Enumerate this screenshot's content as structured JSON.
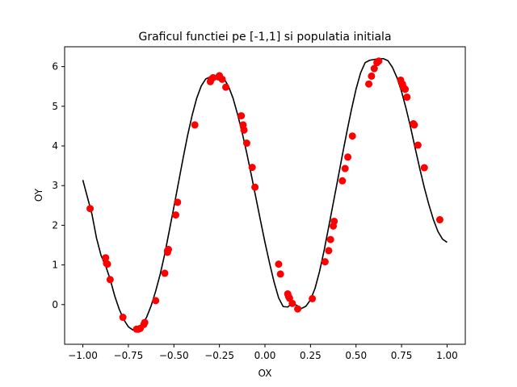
{
  "chart_data": {
    "type": "line+scatter",
    "title": "Graficul functiei pe [-1,1] si populatia initiala",
    "xlabel": "OX",
    "ylabel": "OY",
    "xlim": [
      -1.1,
      1.1
    ],
    "ylim": [
      -1.0,
      6.5
    ],
    "xticks": [
      -1.0,
      -0.75,
      -0.5,
      -0.25,
      0.0,
      0.25,
      0.5,
      0.75,
      1.0
    ],
    "xtick_labels": [
      "−1.00",
      "−0.75",
      "−0.50",
      "−0.25",
      "0.00",
      "0.25",
      "0.50",
      "0.75",
      "1.00"
    ],
    "yticks": [
      0,
      1,
      2,
      3,
      4,
      5,
      6
    ],
    "ytick_labels": [
      "0",
      "1",
      "2",
      "3",
      "4",
      "5",
      "6"
    ],
    "grid": false,
    "series": [
      {
        "type": "line",
        "color": "#000000",
        "x": [
          -1.0,
          -0.975,
          -0.95,
          -0.925,
          -0.9,
          -0.875,
          -0.85,
          -0.825,
          -0.8,
          -0.775,
          -0.75,
          -0.725,
          -0.7,
          -0.675,
          -0.65,
          -0.625,
          -0.6,
          -0.575,
          -0.55,
          -0.525,
          -0.5,
          -0.475,
          -0.45,
          -0.425,
          -0.4,
          -0.375,
          -0.35,
          -0.325,
          -0.3,
          -0.275,
          -0.25,
          -0.225,
          -0.2,
          -0.175,
          -0.15,
          -0.125,
          -0.1,
          -0.075,
          -0.05,
          -0.025,
          0.0,
          0.025,
          0.05,
          0.075,
          0.1,
          0.125,
          0.15,
          0.175,
          0.2,
          0.225,
          0.25,
          0.275,
          0.3,
          0.325,
          0.35,
          0.375,
          0.4,
          0.425,
          0.45,
          0.475,
          0.5,
          0.525,
          0.55,
          0.575,
          0.6,
          0.625,
          0.65,
          0.675,
          0.7,
          0.725,
          0.75,
          0.775,
          0.8,
          0.825,
          0.85,
          0.875,
          0.9,
          0.925,
          0.95,
          0.975,
          1.0
        ],
        "y": [
          3.14,
          2.71,
          2.28,
          1.68,
          1.24,
          0.98,
          0.64,
          0.22,
          -0.12,
          -0.38,
          -0.56,
          -0.64,
          -0.62,
          -0.51,
          -0.32,
          -0.03,
          0.34,
          0.77,
          1.28,
          1.87,
          2.46,
          3.07,
          3.68,
          4.26,
          4.77,
          5.2,
          5.51,
          5.69,
          5.74,
          5.76,
          5.76,
          5.7,
          5.5,
          5.2,
          4.79,
          4.33,
          3.82,
          3.27,
          2.7,
          2.13,
          1.57,
          1.05,
          0.57,
          0.17,
          -0.05,
          -0.06,
          0.03,
          -0.02,
          -0.1,
          -0.04,
          0.12,
          0.41,
          0.84,
          1.37,
          1.96,
          2.56,
          3.16,
          3.77,
          4.36,
          4.92,
          5.43,
          5.84,
          6.1,
          6.16,
          6.18,
          6.2,
          6.2,
          6.15,
          5.98,
          5.72,
          5.37,
          4.94,
          4.46,
          3.94,
          3.43,
          2.95,
          2.52,
          2.14,
          1.84,
          1.65,
          1.57
        ]
      },
      {
        "type": "scatter",
        "color": "#ff0000",
        "x": [
          -0.96,
          -0.875,
          -0.87,
          -0.865,
          -0.85,
          -0.78,
          -0.705,
          -0.695,
          -0.685,
          -0.665,
          -0.66,
          -0.6,
          -0.55,
          -0.535,
          -0.535,
          -0.53,
          -0.49,
          -0.48,
          -0.385,
          -0.3,
          -0.295,
          -0.285,
          -0.255,
          -0.25,
          -0.235,
          -0.215,
          -0.13,
          -0.12,
          -0.115,
          -0.1,
          -0.07,
          -0.055,
          0.075,
          0.085,
          0.125,
          0.13,
          0.135,
          0.15,
          0.18,
          0.26,
          0.33,
          0.35,
          0.36,
          0.375,
          0.38,
          0.425,
          0.44,
          0.455,
          0.48,
          0.57,
          0.585,
          0.6,
          0.615,
          0.625,
          0.745,
          0.755,
          0.76,
          0.77,
          0.78,
          0.815,
          0.82,
          0.84,
          0.875,
          0.96
        ],
        "y": [
          2.42,
          1.18,
          1.04,
          1.02,
          0.63,
          -0.32,
          -0.62,
          -0.62,
          -0.6,
          -0.5,
          -0.45,
          0.1,
          0.79,
          1.32,
          1.36,
          1.39,
          2.26,
          2.58,
          4.53,
          5.62,
          5.68,
          5.72,
          5.74,
          5.77,
          5.68,
          5.48,
          4.76,
          4.53,
          4.4,
          4.07,
          3.46,
          2.96,
          1.02,
          0.77,
          0.27,
          0.2,
          0.16,
          0.03,
          -0.11,
          0.15,
          1.08,
          1.36,
          1.64,
          1.98,
          2.1,
          3.12,
          3.43,
          3.72,
          4.25,
          5.56,
          5.76,
          5.95,
          6.1,
          6.14,
          5.66,
          5.56,
          5.48,
          5.43,
          5.23,
          4.56,
          4.53,
          4.02,
          3.45,
          2.14
        ]
      }
    ]
  }
}
